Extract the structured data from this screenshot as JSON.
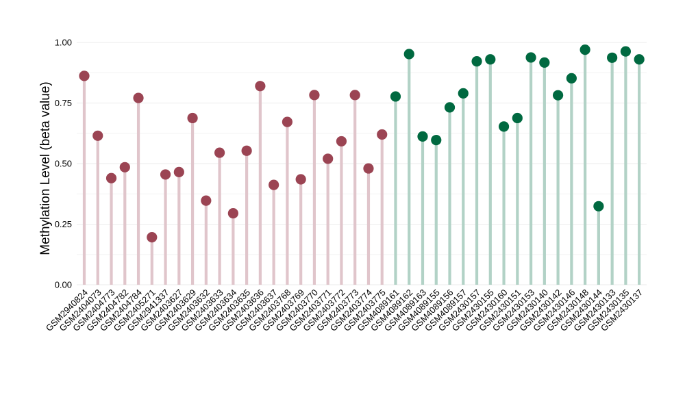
{
  "chart_data": {
    "type": "lollipop",
    "title": "",
    "xlabel": "",
    "ylabel": "Methylation Level (beta value)",
    "ylim": [
      0,
      1
    ],
    "yticks": [
      "0.00",
      "0.25",
      "0.50",
      "0.75",
      "1.00"
    ],
    "grid": true,
    "legend": "none",
    "colors": {
      "group_a_point": "#9b4453",
      "group_a_stem": "#e0c5cb",
      "group_b_point": "#006940",
      "group_b_stem": "#b2d2c6"
    },
    "categories": [
      "GSM2940824",
      "GSM2404073",
      "GSM2404773",
      "GSM2404782",
      "GSM2404784",
      "GSM2405271",
      "GSM2941337",
      "GSM2403627",
      "GSM2403629",
      "GSM2403632",
      "GSM2403633",
      "GSM2403634",
      "GSM2403635",
      "GSM2403636",
      "GSM2403637",
      "GSM2403768",
      "GSM2403769",
      "GSM2403770",
      "GSM2403771",
      "GSM2403772",
      "GSM2403773",
      "GSM2403774",
      "GSM2403775",
      "GSM4089161",
      "GSM4089162",
      "GSM4089163",
      "GSM4089155",
      "GSM4089156",
      "GSM4089157",
      "GSM2430157",
      "GSM2430155",
      "GSM2430160",
      "GSM2430151",
      "GSM2430153",
      "GSM2430140",
      "GSM2430142",
      "GSM2430146",
      "GSM2430148",
      "GSM2430144",
      "GSM2430133",
      "GSM2430135",
      "GSM2430137"
    ],
    "values": [
      0.862,
      0.615,
      0.44,
      0.485,
      0.771,
      0.196,
      0.455,
      0.465,
      0.688,
      0.347,
      0.545,
      0.295,
      0.553,
      0.82,
      0.412,
      0.672,
      0.435,
      0.783,
      0.52,
      0.592,
      0.783,
      0.48,
      0.62,
      0.777,
      0.952,
      0.612,
      0.597,
      0.732,
      0.79,
      0.922,
      0.93,
      0.653,
      0.688,
      0.938,
      0.917,
      0.782,
      0.852,
      0.97,
      0.324,
      0.937,
      0.963,
      0.93
    ],
    "groups": [
      "a",
      "a",
      "a",
      "a",
      "a",
      "a",
      "a",
      "a",
      "a",
      "a",
      "a",
      "a",
      "a",
      "a",
      "a",
      "a",
      "a",
      "a",
      "a",
      "a",
      "a",
      "a",
      "a",
      "b",
      "b",
      "b",
      "b",
      "b",
      "b",
      "b",
      "b",
      "b",
      "b",
      "b",
      "b",
      "b",
      "b",
      "b",
      "b",
      "b",
      "b",
      "b"
    ]
  }
}
